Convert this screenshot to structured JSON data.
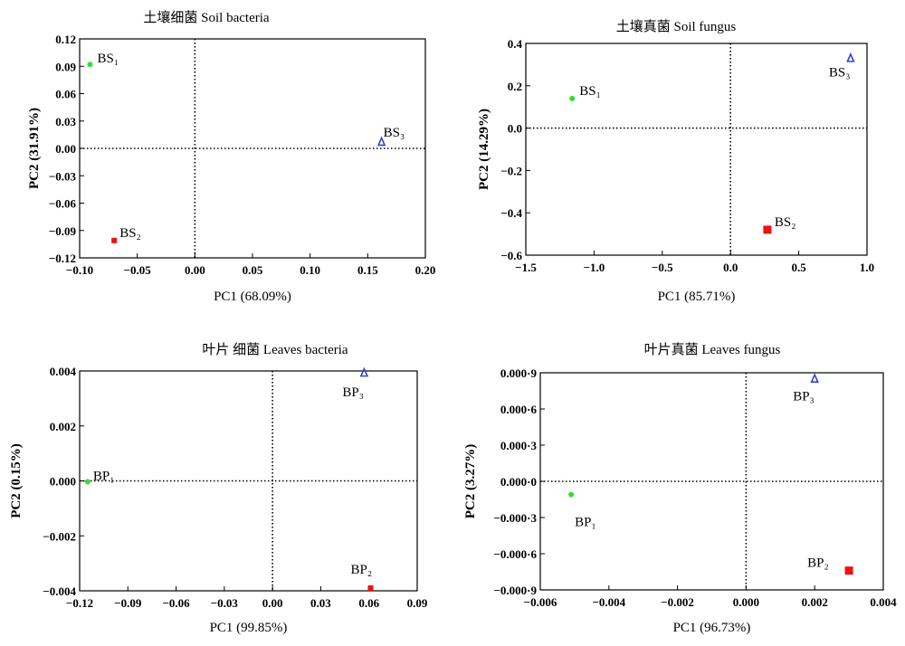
{
  "chart_data": [
    {
      "type": "scatter",
      "title": "土壤细菌    Soil bacteria",
      "xlabel": "PC1 (68.09%)",
      "ylabel": "PC2 (31.91%)",
      "xlim": [
        -0.1,
        0.2
      ],
      "ylim": [
        -0.12,
        0.12
      ],
      "xticks": [
        -0.1,
        -0.05,
        0.0,
        0.05,
        0.1,
        0.15,
        0.2
      ],
      "xtick_labels": [
        "−0.10",
        "−0.05",
        "0.00",
        "0.05",
        "0.10",
        "0.15",
        "0.20"
      ],
      "yticks": [
        0.12,
        0.09,
        0.06,
        0.03,
        0.0,
        -0.03,
        -0.06,
        -0.09,
        -0.12
      ],
      "ytick_labels": [
        "0.12",
        "0.09",
        "0.06",
        "0.03",
        "0.00",
        "−0.03",
        "−0.06",
        "−0.09",
        "−0.12"
      ],
      "grid": false,
      "points": [
        {
          "label": "BS₁",
          "x": -0.091,
          "y": 0.092,
          "color": "#33dd33",
          "marker": "circle"
        },
        {
          "label": "BS₂",
          "x": -0.07,
          "y": -0.101,
          "color": "#ee1111",
          "marker": "square"
        },
        {
          "label": "BS₃",
          "x": 0.162,
          "y": 0.007,
          "color": "#3344cc",
          "marker": "triangle"
        }
      ]
    },
    {
      "type": "scatter",
      "title": "土壤真菌    Soil fungus",
      "xlabel": "PC1 (85.71%)",
      "ylabel": "PC2 (14.29%)",
      "xlim": [
        -1.5,
        1.0
      ],
      "ylim": [
        -0.6,
        0.4
      ],
      "xticks": [
        -1.5,
        -1.0,
        -0.5,
        0.0,
        0.5,
        1.0
      ],
      "xtick_labels": [
        "−1.5",
        "−1.0",
        "−0.5",
        "0.0",
        "0.5",
        "1.0"
      ],
      "yticks": [
        0.4,
        0.2,
        0.0,
        -0.2,
        -0.4,
        -0.6
      ],
      "ytick_labels": [
        "0.4",
        "0.2",
        "0.0",
        "−0.2",
        "−0.4",
        "−0.6"
      ],
      "grid": false,
      "points": [
        {
          "label": "BS₁",
          "x": -1.16,
          "y": 0.14,
          "color": "#33dd33",
          "marker": "circle"
        },
        {
          "label": "BS₂",
          "x": 0.27,
          "y": -0.48,
          "color": "#ee1111",
          "marker": "square"
        },
        {
          "label": "BS₃",
          "x": 0.88,
          "y": 0.33,
          "color": "#3344cc",
          "marker": "triangle"
        }
      ]
    },
    {
      "type": "scatter",
      "title": "叶片 细菌    Leaves bacteria",
      "xlabel": "PC1 (99.85%)",
      "ylabel": "PC2 (0.15%)",
      "xlim": [
        -0.12,
        0.09
      ],
      "ylim": [
        -0.004,
        0.004
      ],
      "xticks": [
        -0.12,
        -0.09,
        -0.06,
        -0.03,
        0.0,
        0.03,
        0.06,
        0.09
      ],
      "xtick_labels": [
        "−0.12",
        "−0.09",
        "−0.06",
        "−0.03",
        "0.00",
        "0.03",
        "0.06",
        "0.09"
      ],
      "yticks": [
        0.004,
        0.002,
        0.0,
        -0.002,
        -0.004
      ],
      "ytick_labels": [
        "0.004",
        "0.002",
        "0.000",
        "−0.002",
        "−0.004"
      ],
      "grid": false,
      "points": [
        {
          "label": "BP₁",
          "x": -0.115,
          "y": -3e-05,
          "color": "#33dd33",
          "marker": "circle"
        },
        {
          "label": "BP₂",
          "x": 0.061,
          "y": -0.0039,
          "color": "#ee1111",
          "marker": "square"
        },
        {
          "label": "BP₃",
          "x": 0.057,
          "y": 0.00393,
          "color": "#3344cc",
          "marker": "triangle"
        }
      ]
    },
    {
      "type": "scatter",
      "title": "叶片真菌    Leaves fungus",
      "xlabel": "PC1 (96.73%)",
      "ylabel": "PC2 (3.27%)",
      "xlim": [
        -0.006,
        0.004
      ],
      "ylim": [
        -0.0009,
        0.0009
      ],
      "xticks": [
        -0.006,
        -0.004,
        -0.002,
        0.0,
        0.002,
        0.004
      ],
      "xtick_labels": [
        "−0.006",
        "−0.004",
        "−0.002",
        "0.000",
        "0.002",
        "0.004"
      ],
      "yticks": [
        0.0009,
        0.0006,
        0.0003,
        0.0,
        -0.0003,
        -0.0006,
        -0.0009
      ],
      "ytick_labels": [
        "0.000·9",
        "0.000·6",
        "0.000·3",
        "0.000·0",
        "−0.000·3",
        "−0.000·6",
        "−0.000·9"
      ],
      "grid": false,
      "points": [
        {
          "label": "BP₁",
          "x": -0.0051,
          "y": -0.00011,
          "color": "#33dd33",
          "marker": "circle"
        },
        {
          "label": "BP₂",
          "x": 0.003,
          "y": -0.00074,
          "color": "#ee1111",
          "marker": "square"
        },
        {
          "label": "BP₃",
          "x": 0.002,
          "y": 0.00085,
          "color": "#3344cc",
          "marker": "triangle"
        }
      ]
    }
  ]
}
